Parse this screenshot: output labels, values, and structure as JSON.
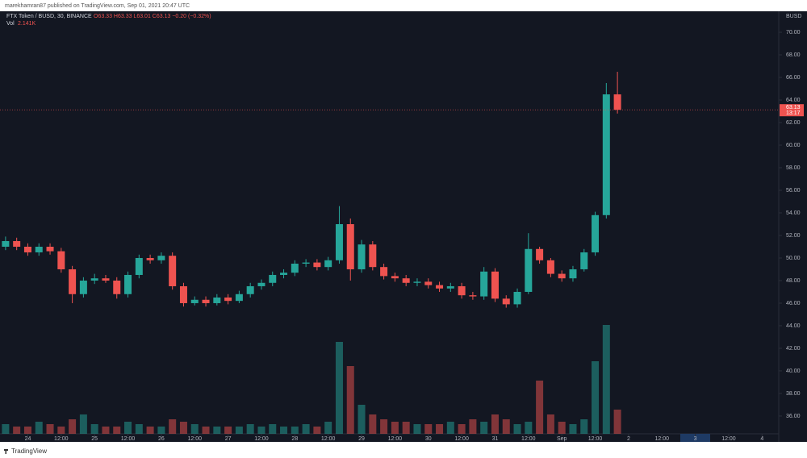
{
  "header": {
    "publisher": "marekhamran87 published on TradingView.com, Sep 01, 2021 20:47 UTC"
  },
  "footer": {
    "logo": "TradingView"
  },
  "chart_data": {
    "type": "candlestick",
    "symbol": "FTX Token / BUSD, 30, BINANCE",
    "ohlc_legend": "O63.33 H63.33 L63.01 C63.13 −0.20 (−0.32%)",
    "volume_label": "Vol",
    "volume_value": "2.141K",
    "currency": "BUSD",
    "last_price": {
      "value": 63.13,
      "label": "63.13",
      "countdown": "13:17"
    },
    "up_color": "#26a69a",
    "down_color": "#ef5350",
    "x": [
      -8,
      -4,
      0,
      4,
      8,
      12,
      16,
      20,
      24,
      28,
      32,
      36,
      40,
      44,
      48,
      52,
      56,
      60,
      64,
      68,
      72,
      76,
      80,
      84,
      88,
      92,
      96,
      100,
      104,
      108,
      112,
      116,
      120,
      124,
      128,
      132,
      136,
      140,
      144,
      148,
      152,
      156,
      160,
      164,
      168,
      172,
      176,
      180,
      184,
      188,
      192,
      196,
      200,
      204,
      208,
      212
    ],
    "open": [
      51.0,
      51.5,
      51.0,
      50.5,
      51.0,
      50.6,
      49.0,
      46.8,
      48.0,
      48.2,
      48.0,
      46.8,
      48.5,
      50.0,
      49.8,
      50.2,
      47.5,
      46.0,
      46.3,
      46.0,
      46.5,
      46.2,
      46.8,
      47.5,
      47.8,
      48.5,
      48.7,
      49.5,
      49.6,
      49.2,
      49.8,
      53.0,
      49.0,
      51.2,
      49.2,
      48.4,
      48.2,
      47.8,
      47.9,
      47.6,
      47.3,
      47.5,
      46.7,
      46.6,
      48.8,
      46.4,
      45.9,
      47.0,
      50.8,
      49.8,
      48.6,
      48.2,
      49.0,
      50.5,
      53.8,
      64.5
    ],
    "high": [
      51.9,
      51.8,
      51.3,
      51.3,
      51.3,
      50.9,
      49.3,
      48.3,
      48.6,
      48.5,
      48.3,
      48.8,
      50.3,
      50.3,
      50.5,
      50.5,
      47.8,
      46.6,
      46.6,
      46.8,
      46.8,
      47.1,
      47.8,
      48.1,
      48.8,
      49.0,
      49.8,
      49.9,
      49.9,
      50.1,
      54.6,
      53.5,
      51.6,
      51.5,
      49.5,
      48.7,
      48.5,
      48.2,
      48.2,
      47.9,
      47.8,
      47.8,
      47.0,
      49.2,
      49.1,
      46.7,
      47.3,
      52.2,
      51.0,
      50.0,
      48.9,
      49.3,
      50.8,
      54.1,
      65.5,
      66.5
    ],
    "low": [
      50.7,
      50.7,
      50.2,
      50.2,
      50.3,
      48.7,
      46.0,
      46.5,
      47.7,
      47.8,
      46.4,
      46.5,
      48.2,
      49.5,
      49.5,
      47.2,
      45.7,
      45.8,
      45.7,
      45.8,
      45.9,
      46.0,
      46.5,
      47.2,
      47.5,
      48.2,
      48.4,
      49.2,
      48.9,
      48.9,
      49.5,
      48.0,
      48.7,
      48.9,
      48.1,
      47.9,
      47.5,
      47.5,
      47.3,
      47.0,
      47.0,
      46.4,
      46.3,
      46.3,
      46.1,
      45.6,
      45.6,
      46.8,
      49.5,
      48.3,
      47.9,
      47.9,
      48.8,
      50.2,
      53.5,
      62.8
    ],
    "close": [
      51.5,
      51.0,
      50.5,
      51.0,
      50.6,
      49.0,
      46.8,
      48.0,
      48.2,
      48.0,
      46.8,
      48.5,
      50.0,
      49.8,
      50.2,
      47.5,
      46.0,
      46.3,
      46.0,
      46.5,
      46.2,
      46.8,
      47.5,
      47.8,
      48.5,
      48.7,
      49.5,
      49.6,
      49.2,
      49.8,
      53.0,
      49.0,
      51.2,
      49.2,
      48.4,
      48.2,
      47.8,
      47.9,
      47.6,
      47.3,
      47.5,
      46.7,
      46.6,
      48.8,
      46.4,
      45.9,
      47.0,
      50.8,
      49.8,
      48.6,
      48.2,
      49.0,
      50.5,
      53.8,
      64.5,
      63.13
    ],
    "volume": [
      4,
      3,
      3,
      5,
      4,
      3,
      6,
      8,
      4,
      3,
      3,
      5,
      4,
      3,
      3,
      6,
      5,
      4,
      3,
      3,
      3,
      3,
      4,
      3,
      4,
      3,
      3,
      4,
      3,
      5,
      38,
      28,
      12,
      8,
      6,
      5,
      5,
      4,
      4,
      4,
      5,
      4,
      6,
      5,
      8,
      6,
      4,
      5,
      22,
      8,
      5,
      4,
      6,
      30,
      45,
      10
    ],
    "xlim": [
      -10,
      270
    ],
    "xticks": [
      {
        "value": 0,
        "label": "24"
      },
      {
        "value": 12,
        "label": "12:00"
      },
      {
        "value": 24,
        "label": "25"
      },
      {
        "value": 36,
        "label": "12:00"
      },
      {
        "value": 48,
        "label": "26"
      },
      {
        "value": 60,
        "label": "12:00"
      },
      {
        "value": 72,
        "label": "27"
      },
      {
        "value": 84,
        "label": "12:00"
      },
      {
        "value": 96,
        "label": "28"
      },
      {
        "value": 108,
        "label": "12:00"
      },
      {
        "value": 120,
        "label": "29"
      },
      {
        "value": 132,
        "label": "12:00"
      },
      {
        "value": 144,
        "label": "30"
      },
      {
        "value": 156,
        "label": "12:00"
      },
      {
        "value": 168,
        "label": "31"
      },
      {
        "value": 180,
        "label": "12:00"
      },
      {
        "value": 192,
        "label": "Sep"
      },
      {
        "value": 204,
        "label": "12:00"
      },
      {
        "value": 216,
        "label": "2"
      },
      {
        "value": 228,
        "label": "12:00"
      },
      {
        "value": 240,
        "label": "3"
      },
      {
        "value": 252,
        "label": "12:00"
      },
      {
        "value": 264,
        "label": "4"
      }
    ],
    "ylim": [
      33.71,
      71.86
    ],
    "yticks": [
      {
        "value": 36,
        "label": "36.00"
      },
      {
        "value": 38,
        "label": "38.00"
      },
      {
        "value": 40,
        "label": "40.00"
      },
      {
        "value": 42,
        "label": "42.00"
      },
      {
        "value": 44,
        "label": "44.00"
      },
      {
        "value": 46,
        "label": "46.00"
      },
      {
        "value": 48,
        "label": "48.00"
      },
      {
        "value": 50,
        "label": "50.00"
      },
      {
        "value": 52,
        "label": "52.00"
      },
      {
        "value": 54,
        "label": "54.00"
      },
      {
        "value": 56,
        "label": "56.00"
      },
      {
        "value": 58,
        "label": "58.00"
      },
      {
        "value": 60,
        "label": "60.00"
      },
      {
        "value": 62,
        "label": "62.00"
      },
      {
        "value": 64,
        "label": "64.00"
      },
      {
        "value": 66,
        "label": "66.00"
      },
      {
        "value": 68,
        "label": "68.00"
      },
      {
        "value": 70,
        "label": "70.00"
      }
    ]
  }
}
